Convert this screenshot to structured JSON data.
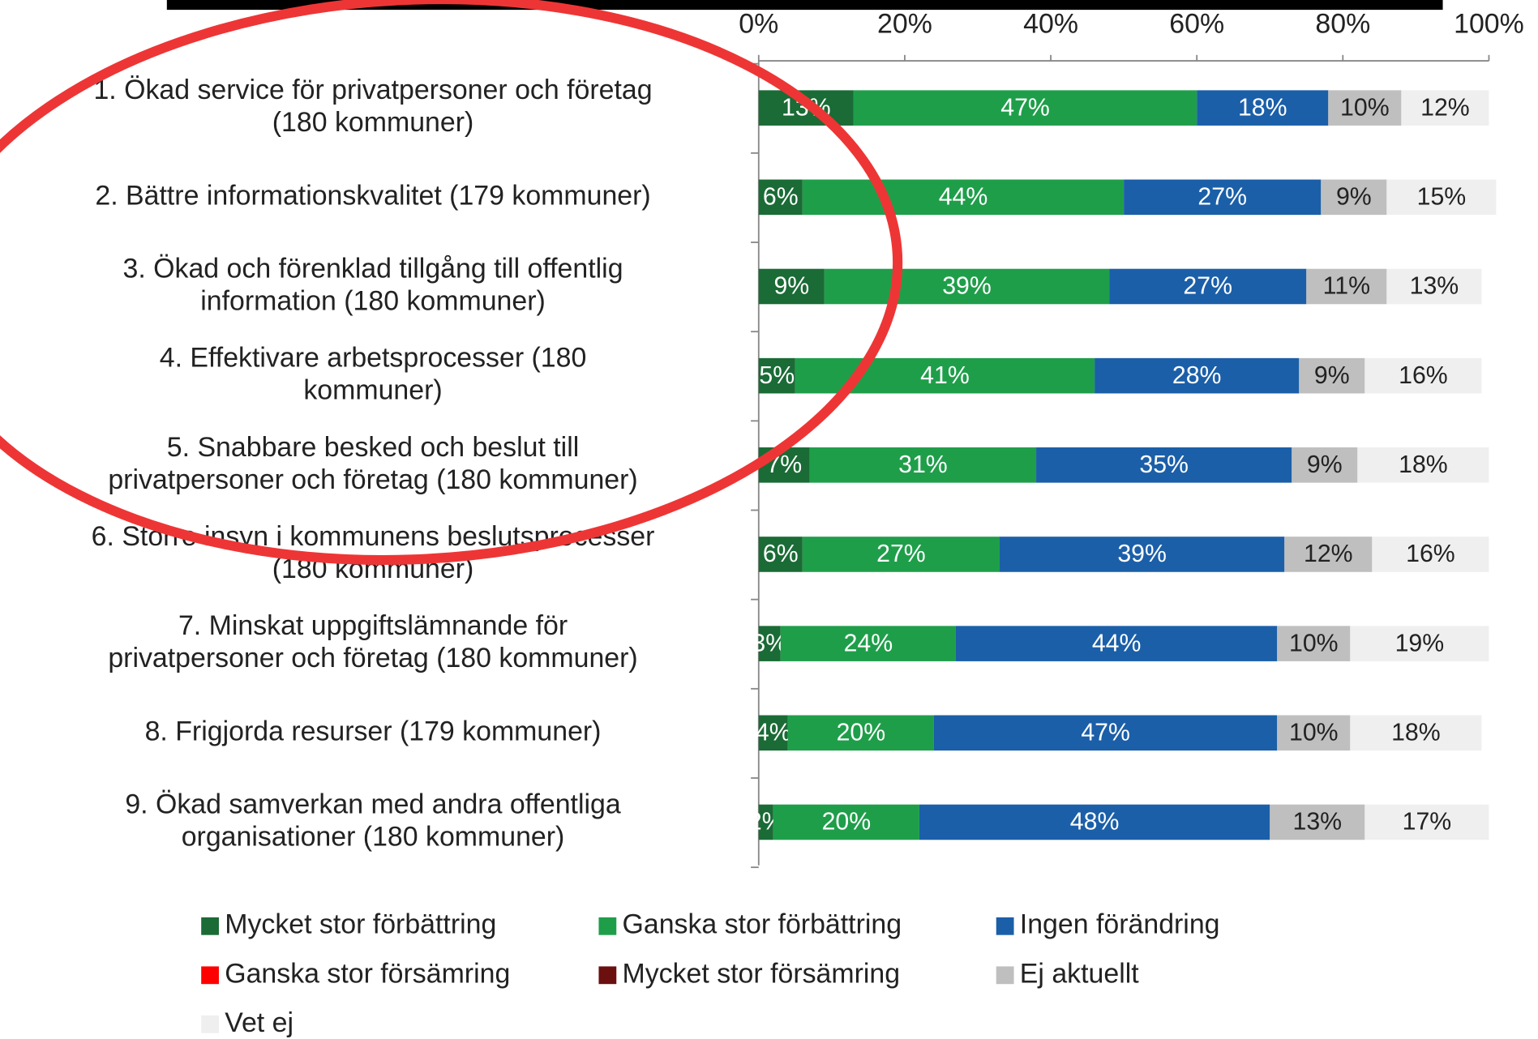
{
  "chart_data": {
    "type": "stacked_barh",
    "categories": [
      "1. Ökad service för privatpersoner och företag\n(180 kommuner)",
      "2. Bättre informationskvalitet (179 kommuner)",
      "3. Ökad och förenklad tillgång till offentlig\ninformation (180 kommuner)",
      "4. Effektivare arbetsprocesser (180\nkommuner)",
      "5. Snabbare besked och beslut till\nprivatpersoner och företag (180 kommuner)",
      "6. Större insyn i kommunens beslutsprocesser\n(180 kommuner)",
      "7. Minskat uppgiftslämnande för\nprivatpersoner och företag (180 kommuner)",
      "8. Frigjorda resurser (179 kommuner)",
      "9. Ökad samverkan med andra offentliga\norganisationer (180 kommuner)"
    ],
    "series": [
      {
        "name": "Mycket stor förbättring",
        "color": "#1a6b35",
        "values": [
          13,
          6,
          9,
          5,
          7,
          6,
          3,
          4,
          2
        ],
        "value_labels": [
          "13%",
          "6%",
          "9%",
          "5%",
          "7%",
          "6%",
          "3%",
          "4%",
          "2%"
        ]
      },
      {
        "name": "Ganska stor förbättring",
        "color": "#1f9e4a",
        "values": [
          47,
          44,
          39,
          41,
          31,
          27,
          24,
          20,
          20
        ],
        "value_labels": [
          "47%",
          "44%",
          "39%",
          "41%",
          "31%",
          "27%",
          "24%",
          "20%",
          "20%"
        ]
      },
      {
        "name": "Ingen förändring",
        "color": "#1b5fa8",
        "values": [
          18,
          27,
          27,
          28,
          35,
          39,
          44,
          47,
          48
        ],
        "value_labels": [
          "18%",
          "27%",
          "27%",
          "28%",
          "35%",
          "39%",
          "44%",
          "47%",
          "48%"
        ]
      },
      {
        "name": "Ganska stor försämring",
        "color": "#ff0000",
        "values": [
          0,
          0,
          0,
          0,
          0,
          0,
          0,
          0,
          0
        ]
      },
      {
        "name": "Mycket stor försämring",
        "color": "#6b0f0f",
        "values": [
          0,
          0,
          0,
          0,
          0,
          0,
          0,
          0,
          0
        ]
      },
      {
        "name": "Ej aktuellt",
        "color": "#bfbfbf",
        "values": [
          10,
          9,
          11,
          9,
          9,
          12,
          10,
          10,
          13
        ],
        "value_labels": [
          "10%",
          "9%",
          "11%",
          "9%",
          "9%",
          "12%",
          "10%",
          "10%",
          "13%"
        ]
      },
      {
        "name": "Vet ej",
        "color": "#efefef",
        "values": [
          12,
          15,
          13,
          16,
          18,
          16,
          19,
          18,
          17
        ],
        "value_labels": [
          "12%",
          "15%",
          "13%",
          "16%",
          "18%",
          "16%",
          "19%",
          "18%",
          "17%"
        ]
      }
    ],
    "xlim": [
      0,
      100
    ],
    "xticks": [
      {
        "value": 0,
        "label": "0%"
      },
      {
        "value": 20,
        "label": "20%"
      },
      {
        "value": 40,
        "label": "40%"
      },
      {
        "value": 60,
        "label": "60%"
      },
      {
        "value": 80,
        "label": "80%"
      },
      {
        "value": 100,
        "label": "100%"
      }
    ]
  }
}
